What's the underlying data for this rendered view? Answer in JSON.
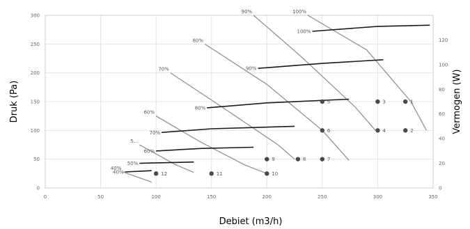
{
  "chart_data": {
    "type": "line",
    "title": "",
    "xlabel": "Debiet (m3/h)",
    "ylabel": "Druk (Pa)",
    "y2label": "Vermogen (W)",
    "xlim": [
      0,
      350
    ],
    "ylim": [
      0,
      300
    ],
    "y2lim": [
      0,
      140
    ],
    "xticks": [
      "0",
      "50",
      "100",
      "150",
      "200",
      "250",
      "300",
      "350"
    ],
    "yticks": [
      "0",
      "50",
      "100",
      "150",
      "200",
      "250",
      "300"
    ],
    "y2ticks": [
      "0",
      "20",
      "40",
      "60",
      "80",
      "100",
      "120"
    ],
    "grid": true,
    "pressure_curves": [
      {
        "label": "40%",
        "points": [
          [
            70,
            28
          ],
          [
            96,
            10
          ]
        ]
      },
      {
        "label": "5...",
        "points": [
          [
            85,
            75
          ],
          [
            118,
            40
          ],
          [
            134,
            27
          ]
        ]
      },
      {
        "label": "60%",
        "points": [
          [
            100,
            125
          ],
          [
            140,
            80
          ],
          [
            180,
            40
          ],
          [
            200,
            25
          ]
        ]
      },
      {
        "label": "70%",
        "points": [
          [
            113,
            200
          ],
          [
            160,
            140
          ],
          [
            210,
            75
          ],
          [
            225,
            50
          ]
        ]
      },
      {
        "label": "80%",
        "points": [
          [
            144,
            250
          ],
          [
            200,
            180
          ],
          [
            250,
            100
          ],
          [
            274,
            48
          ]
        ]
      },
      {
        "label": "90%",
        "points": [
          [
            188,
            300
          ],
          [
            230,
            230
          ],
          [
            280,
            140
          ],
          [
            298,
            100
          ]
        ]
      },
      {
        "label": "100%",
        "points": [
          [
            237,
            300
          ],
          [
            290,
            240
          ],
          [
            330,
            150
          ],
          [
            344,
            100
          ]
        ]
      }
    ],
    "power_curves": [
      {
        "label": "40%",
        "points": [
          [
            72,
            13
          ],
          [
            96,
            14
          ]
        ]
      },
      {
        "label": "50%",
        "points": [
          [
            85,
            20
          ],
          [
            134,
            21
          ]
        ]
      },
      {
        "label": "60%",
        "points": [
          [
            100,
            30
          ],
          [
            140,
            32
          ],
          [
            188,
            33
          ]
        ]
      },
      {
        "label": "70%",
        "points": [
          [
            105,
            45
          ],
          [
            150,
            48
          ],
          [
            225,
            50
          ]
        ]
      },
      {
        "label": "80%",
        "points": [
          [
            146,
            65
          ],
          [
            200,
            69
          ],
          [
            274,
            72
          ]
        ]
      },
      {
        "label": "90%",
        "points": [
          [
            192,
            97
          ],
          [
            250,
            101
          ],
          [
            305,
            104
          ]
        ]
      },
      {
        "label": "100%",
        "points": [
          [
            241,
            127
          ],
          [
            300,
            131
          ],
          [
            347,
            132
          ]
        ]
      }
    ],
    "points": [
      {
        "label": "1",
        "x": 325,
        "y": 150
      },
      {
        "label": "2",
        "x": 325,
        "y": 100
      },
      {
        "label": "3",
        "x": 300,
        "y": 150
      },
      {
        "label": "4",
        "x": 300,
        "y": 100
      },
      {
        "label": "5",
        "x": 250,
        "y": 150
      },
      {
        "label": "6",
        "x": 250,
        "y": 100
      },
      {
        "label": "7",
        "x": 250,
        "y": 50
      },
      {
        "label": "8",
        "x": 228,
        "y": 50
      },
      {
        "label": "9",
        "x": 200,
        "y": 50
      },
      {
        "label": "10",
        "x": 200,
        "y": 25
      },
      {
        "label": "11",
        "x": 150,
        "y": 25
      },
      {
        "label": "12",
        "x": 100,
        "y": 25
      }
    ],
    "colors": {
      "pressure": "#8c8c8c",
      "power": "#1a1a1a",
      "point": "#4a4a4a",
      "grid": "#e4e4e4"
    }
  }
}
